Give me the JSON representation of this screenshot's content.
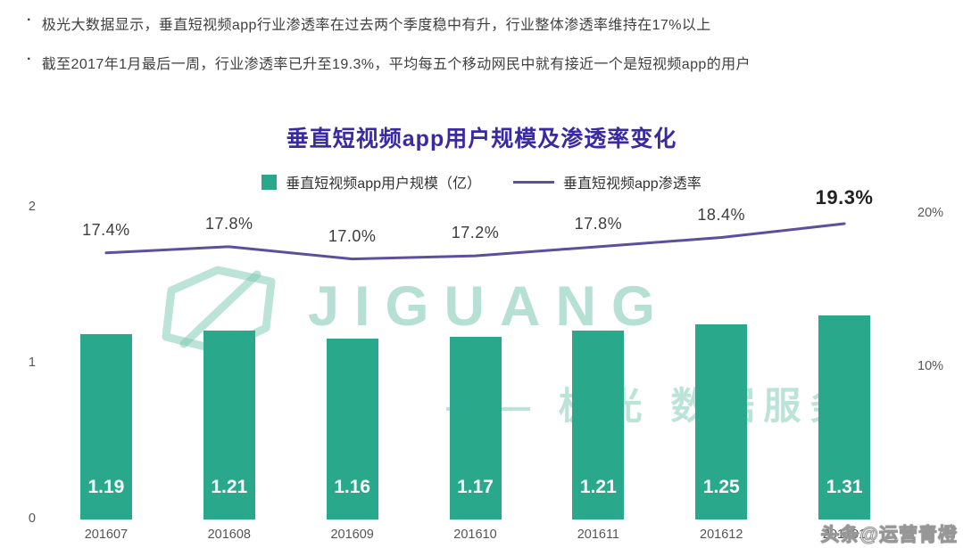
{
  "bullets": [
    "极光大数据显示，垂直短视频app行业渗透率在过去两个季度稳中有升，行业整体渗透率维持在17%以上",
    "截至2017年1月最后一周，行业渗透率已升至19.3%，平均每五个移动网民中就有接近一个是短视频app的用户"
  ],
  "chart_data": {
    "type": "bar",
    "title": "垂直短视频app用户规模及渗透率变化",
    "categories": [
      "201607",
      "201608",
      "201609",
      "201610",
      "201611",
      "201612",
      "201701"
    ],
    "series": [
      {
        "name": "垂直短视频app用户规模（亿）",
        "type": "bar",
        "axis": "left",
        "color": "#2aa88c",
        "values": [
          1.19,
          1.21,
          1.16,
          1.17,
          1.21,
          1.25,
          1.31
        ]
      },
      {
        "name": "垂直短视频app渗透率",
        "type": "line",
        "axis": "right",
        "color": "#5b4f9e",
        "values": [
          17.4,
          17.8,
          17.0,
          17.2,
          17.8,
          18.4,
          19.3
        ],
        "labels": [
          "17.4%",
          "17.8%",
          "17.0%",
          "17.2%",
          "17.8%",
          "18.4%",
          "19.3%"
        ]
      }
    ],
    "left_axis": {
      "range": [
        0,
        2
      ],
      "ticks": [
        "0",
        "1",
        "2"
      ]
    },
    "right_axis": {
      "range": [
        0,
        20
      ],
      "ticks": [
        "10%",
        "20%"
      ]
    },
    "legend_position": "top",
    "grid": false
  },
  "watermark": {
    "brand": "JIGUANG",
    "caption": "—— 极光 数据服务"
  },
  "footer_watermark": "头条@运营青橙",
  "colors": {
    "title": "#3a2aa2",
    "bar": "#2aa88c",
    "line": "#5b4f9e",
    "watermark": "#9fd6c5"
  }
}
